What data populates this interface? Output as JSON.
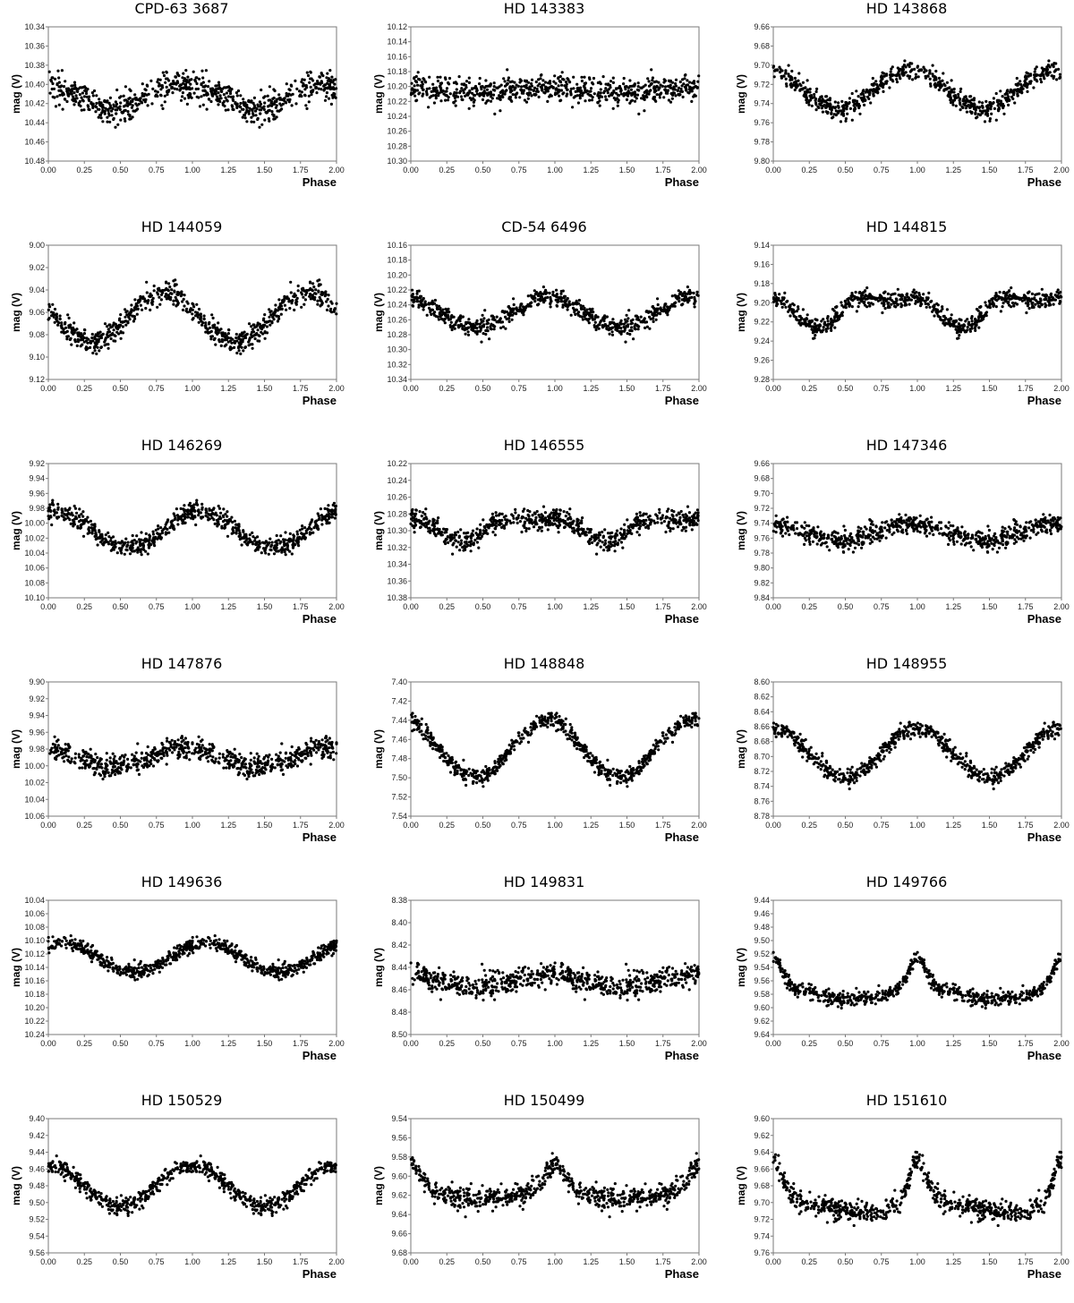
{
  "chart_data": [
    {
      "type": "scatter",
      "title": "CPD-63 3687",
      "xlabel": "Phase",
      "ylabel": "mag (V)",
      "xlim": [
        0,
        2
      ],
      "ylim": [
        10.48,
        10.34
      ],
      "y_inverted": true,
      "xticks": [
        "0.00",
        "0.25",
        "0.50",
        "0.75",
        "1.00",
        "1.25",
        "1.50",
        "1.75",
        "2.00"
      ],
      "yticks": [
        "10.34",
        "10.36",
        "10.38",
        "10.40",
        "10.42",
        "10.44",
        "10.46",
        "10.48"
      ],
      "model": {
        "mean": 10.412,
        "minima": [
          0.45
        ],
        "amp": 0.012,
        "shape": "sine",
        "scatter": 0.014
      }
    },
    {
      "type": "scatter",
      "title": "HD 143383",
      "xlabel": "Phase",
      "ylabel": "mag (V)",
      "xlim": [
        0,
        2
      ],
      "ylim": [
        10.3,
        10.12
      ],
      "y_inverted": true,
      "xticks": [
        "0.00",
        "0.25",
        "0.50",
        "0.75",
        "1.00",
        "1.25",
        "1.50",
        "1.75",
        "2.00"
      ],
      "yticks": [
        "10.12",
        "10.14",
        "10.16",
        "10.18",
        "10.20",
        "10.22",
        "10.24",
        "10.26",
        "10.28",
        "10.30"
      ],
      "model": {
        "mean": 10.205,
        "minima": [
          0.5
        ],
        "amp": 0.004,
        "shape": "sine",
        "scatter": 0.016
      }
    },
    {
      "type": "scatter",
      "title": "HD 143868",
      "xlabel": "Phase",
      "ylabel": "mag (V)",
      "xlim": [
        0,
        2
      ],
      "ylim": [
        9.8,
        9.66
      ],
      "y_inverted": true,
      "xticks": [
        "0.00",
        "0.25",
        "0.50",
        "0.75",
        "1.00",
        "1.25",
        "1.50",
        "1.75",
        "2.00"
      ],
      "yticks": [
        "9.66",
        "9.68",
        "9.70",
        "9.72",
        "9.74",
        "9.76",
        "9.78",
        "9.80"
      ],
      "model": {
        "mean": 9.725,
        "minima": [
          0.45
        ],
        "amp": 0.02,
        "shape": "sine",
        "scatter": 0.01
      }
    },
    {
      "type": "scatter",
      "title": "HD 144059",
      "xlabel": "Phase",
      "ylabel": "mag (V)",
      "xlim": [
        0,
        2
      ],
      "ylim": [
        9.12,
        9.0
      ],
      "y_inverted": true,
      "xticks": [
        "0.00",
        "0.25",
        "0.50",
        "0.75",
        "1.00",
        "1.25",
        "1.50",
        "1.75",
        "2.00"
      ],
      "yticks": [
        "9.00",
        "9.02",
        "9.04",
        "9.06",
        "9.08",
        "9.10",
        "9.12"
      ],
      "model": {
        "mean": 9.065,
        "minima": [
          0.3
        ],
        "amp": 0.022,
        "shape": "sine",
        "scatter": 0.009
      }
    },
    {
      "type": "scatter",
      "title": "CD-54 6496",
      "xlabel": "Phase",
      "ylabel": "mag (V)",
      "xlim": [
        0,
        2
      ],
      "ylim": [
        10.34,
        10.16
      ],
      "y_inverted": true,
      "xticks": [
        "0.00",
        "0.25",
        "0.50",
        "0.75",
        "1.00",
        "1.25",
        "1.50",
        "1.75",
        "2.00"
      ],
      "yticks": [
        "10.16",
        "10.18",
        "10.20",
        "10.22",
        "10.24",
        "10.26",
        "10.28",
        "10.30",
        "10.32",
        "10.34"
      ],
      "model": {
        "mean": 10.25,
        "minima": [
          0.45
        ],
        "amp": 0.02,
        "shape": "sine",
        "scatter": 0.012
      }
    },
    {
      "type": "scatter",
      "title": "HD 144815",
      "xlabel": "Phase",
      "ylabel": "mag (V)",
      "xlim": [
        0,
        2
      ],
      "ylim": [
        9.28,
        9.14
      ],
      "y_inverted": true,
      "xticks": [
        "0.00",
        "0.25",
        "0.50",
        "0.75",
        "1.00",
        "1.25",
        "1.50",
        "1.75",
        "2.00"
      ],
      "yticks": [
        "9.14",
        "9.16",
        "9.18",
        "9.20",
        "9.22",
        "9.24",
        "9.26",
        "9.28"
      ],
      "model": {
        "mean": 9.205,
        "minima": [
          0.3
        ],
        "amp": 0.02,
        "shape": "double",
        "scatter": 0.008
      }
    },
    {
      "type": "scatter",
      "title": "HD 146269",
      "xlabel": "Phase",
      "ylabel": "mag (V)",
      "xlim": [
        0,
        2
      ],
      "ylim": [
        10.1,
        9.92
      ],
      "y_inverted": true,
      "xticks": [
        "0.00",
        "0.25",
        "0.50",
        "0.75",
        "1.00",
        "1.25",
        "1.50",
        "1.75",
        "2.00"
      ],
      "yticks": [
        "9.92",
        "9.94",
        "9.96",
        "9.98",
        "10.00",
        "10.02",
        "10.04",
        "10.06",
        "10.08",
        "10.10"
      ],
      "model": {
        "mean": 10.008,
        "minima": [
          0.55
        ],
        "amp": 0.025,
        "shape": "sine",
        "scatter": 0.012
      }
    },
    {
      "type": "scatter",
      "title": "HD 146555",
      "xlabel": "Phase",
      "ylabel": "mag (V)",
      "xlim": [
        0,
        2
      ],
      "ylim": [
        10.38,
        10.22
      ],
      "y_inverted": true,
      "xticks": [
        "0.00",
        "0.25",
        "0.50",
        "0.75",
        "1.00",
        "1.25",
        "1.50",
        "1.75",
        "2.00"
      ],
      "yticks": [
        "10.22",
        "10.24",
        "10.26",
        "10.28",
        "10.30",
        "10.32",
        "10.34",
        "10.36",
        "10.38"
      ],
      "model": {
        "mean": 10.295,
        "minima": [
          0.35
        ],
        "amp": 0.018,
        "shape": "double",
        "scatter": 0.011
      }
    },
    {
      "type": "scatter",
      "title": "HD 147346",
      "xlabel": "Phase",
      "ylabel": "mag (V)",
      "xlim": [
        0,
        2
      ],
      "ylim": [
        9.84,
        9.66
      ],
      "y_inverted": true,
      "xticks": [
        "0.00",
        "0.25",
        "0.50",
        "0.75",
        "1.00",
        "1.25",
        "1.50",
        "1.75",
        "2.00"
      ],
      "yticks": [
        "9.66",
        "9.68",
        "9.70",
        "9.72",
        "9.74",
        "9.76",
        "9.78",
        "9.80",
        "9.82",
        "9.84"
      ],
      "model": {
        "mean": 9.752,
        "minima": [
          0.45
        ],
        "amp": 0.012,
        "shape": "sine",
        "scatter": 0.012
      }
    },
    {
      "type": "scatter",
      "title": "HD 147876",
      "xlabel": "Phase",
      "ylabel": "mag (V)",
      "xlim": [
        0,
        2
      ],
      "ylim": [
        10.06,
        9.9
      ],
      "y_inverted": true,
      "xticks": [
        "0.00",
        "0.25",
        "0.50",
        "0.75",
        "1.00",
        "1.25",
        "1.50",
        "1.75",
        "2.00"
      ],
      "yticks": [
        "9.90",
        "9.92",
        "9.94",
        "9.96",
        "9.98",
        "10.00",
        "10.02",
        "10.04",
        "10.06"
      ],
      "model": {
        "mean": 9.99,
        "minima": [
          0.45
        ],
        "amp": 0.012,
        "shape": "sine",
        "scatter": 0.012
      }
    },
    {
      "type": "scatter",
      "title": "HD 148848",
      "xlabel": "Phase",
      "ylabel": "mag (V)",
      "xlim": [
        0,
        2
      ],
      "ylim": [
        7.54,
        7.4
      ],
      "y_inverted": true,
      "xticks": [
        "0.00",
        "0.25",
        "0.50",
        "0.75",
        "1.00",
        "1.25",
        "1.50",
        "1.75",
        "2.00"
      ],
      "yticks": [
        "7.40",
        "7.42",
        "7.44",
        "7.46",
        "7.48",
        "7.50",
        "7.52",
        "7.54"
      ],
      "model": {
        "mean": 7.47,
        "minima": [
          0.45
        ],
        "amp": 0.03,
        "shape": "sine",
        "scatter": 0.007
      }
    },
    {
      "type": "scatter",
      "title": "HD 148955",
      "xlabel": "Phase",
      "ylabel": "mag (V)",
      "xlim": [
        0,
        2
      ],
      "ylim": [
        8.78,
        8.6
      ],
      "y_inverted": true,
      "xticks": [
        "0.00",
        "0.25",
        "0.50",
        "0.75",
        "1.00",
        "1.25",
        "1.50",
        "1.75",
        "2.00"
      ],
      "yticks": [
        "8.60",
        "8.62",
        "8.64",
        "8.66",
        "8.68",
        "8.70",
        "8.72",
        "8.74",
        "8.76",
        "8.78"
      ],
      "model": {
        "mean": 8.695,
        "minima": [
          0.5
        ],
        "amp": 0.033,
        "shape": "sine",
        "scatter": 0.01
      }
    },
    {
      "type": "scatter",
      "title": "HD 149636",
      "xlabel": "Phase",
      "ylabel": "mag (V)",
      "xlim": [
        0,
        2
      ],
      "ylim": [
        10.24,
        10.04
      ],
      "y_inverted": true,
      "xticks": [
        "0.00",
        "0.25",
        "0.50",
        "0.75",
        "1.00",
        "1.25",
        "1.50",
        "1.75",
        "2.00"
      ],
      "yticks": [
        "10.04",
        "10.06",
        "10.08",
        "10.10",
        "10.12",
        "10.14",
        "10.16",
        "10.18",
        "10.20",
        "10.22",
        "10.24"
      ],
      "model": {
        "mean": 10.125,
        "minima": [
          0.6
        ],
        "amp": 0.022,
        "shape": "sine",
        "scatter": 0.01
      }
    },
    {
      "type": "scatter",
      "title": "HD 149831",
      "xlabel": "Phase",
      "ylabel": "mag (V)",
      "xlim": [
        0,
        2
      ],
      "ylim": [
        8.5,
        8.38
      ],
      "y_inverted": true,
      "xticks": [
        "0.00",
        "0.25",
        "0.50",
        "0.75",
        "1.00",
        "1.25",
        "1.50",
        "1.75",
        "2.00"
      ],
      "yticks": [
        "8.38",
        "8.40",
        "8.42",
        "8.44",
        "8.46",
        "8.48",
        "8.50"
      ],
      "model": {
        "mean": 8.452,
        "minima": [
          0.45
        ],
        "amp": 0.006,
        "shape": "sine",
        "scatter": 0.01
      }
    },
    {
      "type": "scatter",
      "title": "HD 149766",
      "xlabel": "Phase",
      "ylabel": "mag (V)",
      "xlim": [
        0,
        2
      ],
      "ylim": [
        9.64,
        9.44
      ],
      "y_inverted": true,
      "xticks": [
        "0.00",
        "0.25",
        "0.50",
        "0.75",
        "1.00",
        "1.25",
        "1.50",
        "1.75",
        "2.00"
      ],
      "yticks": [
        "9.44",
        "9.46",
        "9.48",
        "9.50",
        "9.52",
        "9.54",
        "9.56",
        "9.58",
        "9.60",
        "9.62",
        "9.64"
      ],
      "model": {
        "mean": 9.565,
        "minima": [
          0.55
        ],
        "amp": 0.03,
        "shape": "peaked",
        "scatter": 0.01
      }
    },
    {
      "type": "scatter",
      "title": "HD 150529",
      "xlabel": "Phase",
      "ylabel": "mag (V)",
      "xlim": [
        0,
        2
      ],
      "ylim": [
        9.56,
        9.4
      ],
      "y_inverted": true,
      "xticks": [
        "0.00",
        "0.25",
        "0.50",
        "0.75",
        "1.00",
        "1.25",
        "1.50",
        "1.75",
        "2.00"
      ],
      "yticks": [
        "9.40",
        "9.42",
        "9.44",
        "9.46",
        "9.48",
        "9.50",
        "9.52",
        "9.54",
        "9.56"
      ],
      "model": {
        "mean": 9.48,
        "minima": [
          0.5
        ],
        "amp": 0.025,
        "shape": "sine",
        "scatter": 0.009
      }
    },
    {
      "type": "scatter",
      "title": "HD 150499",
      "xlabel": "Phase",
      "ylabel": "mag (V)",
      "xlim": [
        0,
        2
      ],
      "ylim": [
        9.68,
        9.54
      ],
      "y_inverted": true,
      "xticks": [
        "0.00",
        "0.25",
        "0.50",
        "0.75",
        "1.00",
        "1.25",
        "1.50",
        "1.75",
        "2.00"
      ],
      "yticks": [
        "9.54",
        "9.56",
        "9.58",
        "9.60",
        "9.62",
        "9.64",
        "9.66",
        "9.68"
      ],
      "model": {
        "mean": 9.61,
        "minima": [
          0.5
        ],
        "amp": 0.018,
        "shape": "peaked",
        "scatter": 0.01
      }
    },
    {
      "type": "scatter",
      "title": "HD 151610",
      "xlabel": "Phase",
      "ylabel": "mag (V)",
      "xlim": [
        0,
        2
      ],
      "ylim": [
        9.76,
        9.6
      ],
      "y_inverted": true,
      "xticks": [
        "0.00",
        "0.25",
        "0.50",
        "0.75",
        "1.00",
        "1.25",
        "1.50",
        "1.75",
        "2.00"
      ],
      "yticks": [
        "9.60",
        "9.62",
        "9.64",
        "9.66",
        "9.68",
        "9.70",
        "9.72",
        "9.74",
        "9.76"
      ],
      "model": {
        "mean": 9.69,
        "minima": [
          0.6
        ],
        "amp": 0.03,
        "shape": "peaked",
        "scatter": 0.011
      }
    }
  ]
}
